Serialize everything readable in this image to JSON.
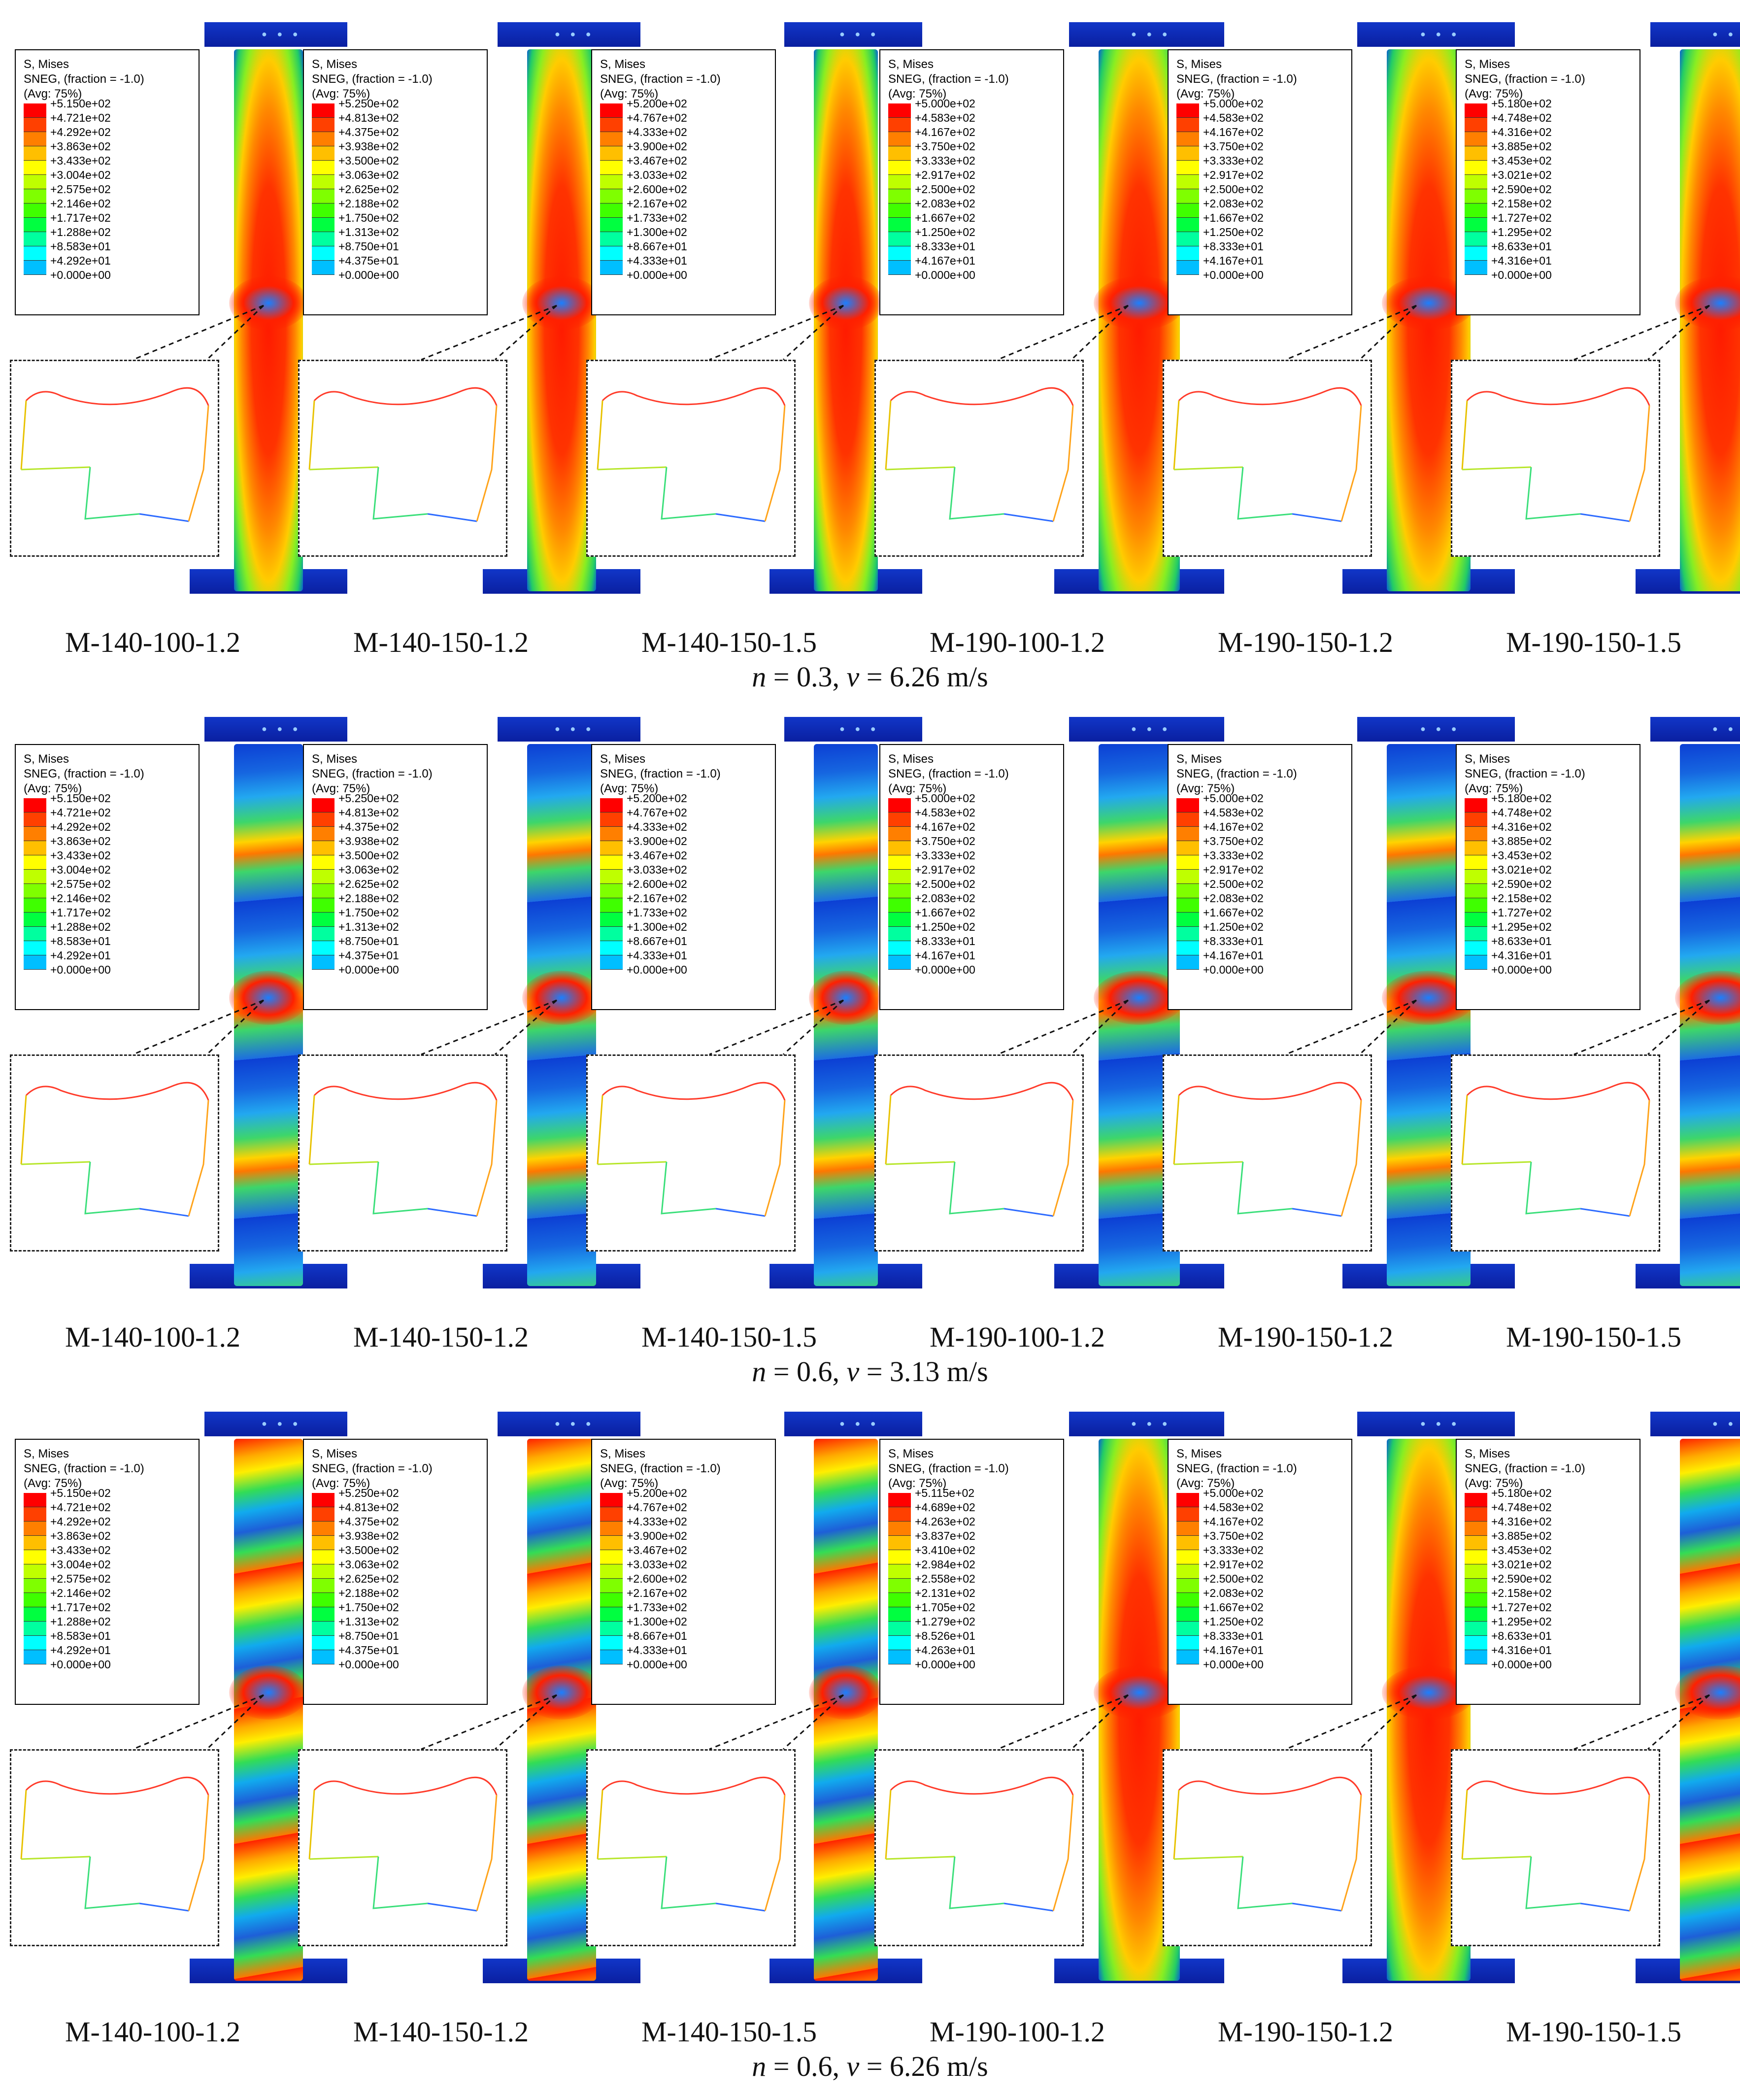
{
  "legend": {
    "title": "S, Mises",
    "line2": "SNEG, (fraction = -1.0)",
    "line3": "(Avg: 75%)",
    "colors": [
      "#ff0000",
      "#ff4000",
      "#ff7f00",
      "#ffbf00",
      "#ffff00",
      "#bfff00",
      "#7fff00",
      "#3fff00",
      "#00ff40",
      "#00ff9f",
      "#00ffff",
      "#00bfff",
      "#007fff",
      "#0000ff"
    ],
    "scales": [
      [
        "+5.150e+02",
        "+4.721e+02",
        "+4.292e+02",
        "+3.863e+02",
        "+3.433e+02",
        "+3.004e+02",
        "+2.575e+02",
        "+2.146e+02",
        "+1.717e+02",
        "+1.288e+02",
        "+8.583e+01",
        "+4.292e+01",
        "+0.000e+00"
      ],
      [
        "+5.250e+02",
        "+4.813e+02",
        "+4.375e+02",
        "+3.938e+02",
        "+3.500e+02",
        "+3.063e+02",
        "+2.625e+02",
        "+2.188e+02",
        "+1.750e+02",
        "+1.313e+02",
        "+8.750e+01",
        "+4.375e+01",
        "+0.000e+00"
      ],
      [
        "+5.200e+02",
        "+4.767e+02",
        "+4.333e+02",
        "+3.900e+02",
        "+3.467e+02",
        "+3.033e+02",
        "+2.600e+02",
        "+2.167e+02",
        "+1.733e+02",
        "+1.300e+02",
        "+8.667e+01",
        "+4.333e+01",
        "+0.000e+00"
      ],
      [
        "+5.000e+02",
        "+4.583e+02",
        "+4.167e+02",
        "+3.750e+02",
        "+3.333e+02",
        "+2.917e+02",
        "+2.500e+02",
        "+2.083e+02",
        "+1.667e+02",
        "+1.250e+02",
        "+8.333e+01",
        "+4.167e+01",
        "+0.000e+00"
      ],
      [
        "+5.000e+02",
        "+4.583e+02",
        "+4.167e+02",
        "+3.750e+02",
        "+3.333e+02",
        "+2.917e+02",
        "+2.500e+02",
        "+2.083e+02",
        "+1.667e+02",
        "+1.250e+02",
        "+8.333e+01",
        "+4.167e+01",
        "+0.000e+00"
      ],
      [
        "+5.180e+02",
        "+4.748e+02",
        "+4.316e+02",
        "+3.885e+02",
        "+3.453e+02",
        "+3.021e+02",
        "+2.590e+02",
        "+2.158e+02",
        "+1.727e+02",
        "+1.295e+02",
        "+8.633e+01",
        "+4.316e+01",
        "+0.000e+00"
      ],
      [
        "+5.115e+02",
        "+4.689e+02",
        "+4.263e+02",
        "+3.837e+02",
        "+3.410e+02",
        "+2.984e+02",
        "+2.558e+02",
        "+2.131e+02",
        "+1.705e+02",
        "+1.279e+02",
        "+8.526e+01",
        "+4.263e+01",
        "+0.000e+00"
      ]
    ]
  },
  "specimens": [
    "M-140-100-1.2",
    "M-140-150-1.2",
    "M-140-150-1.5",
    "M-190-100-1.2",
    "M-190-150-1.2",
    "M-190-150-1.5"
  ],
  "rows": [
    {
      "n_label": "n",
      "n_value": " = 0.3, ",
      "v_label": "v",
      "v_value": " = 6.26 m/s",
      "scale_idx": [
        0,
        1,
        2,
        3,
        4,
        5
      ],
      "stress": [
        "high",
        "high",
        "high",
        "high",
        "high",
        "high"
      ]
    },
    {
      "n_label": "n",
      "n_value": " = 0.6, ",
      "v_label": "v",
      "v_value": " = 3.13 m/s",
      "scale_idx": [
        0,
        1,
        2,
        3,
        4,
        5
      ],
      "stress": [
        "low",
        "low",
        "low",
        "low",
        "low",
        "low"
      ]
    },
    {
      "n_label": "n",
      "n_value": " = 0.6, ",
      "v_label": "v",
      "v_value": " = 6.26 m/s",
      "scale_idx": [
        0,
        1,
        2,
        6,
        4,
        5
      ],
      "stress": [
        "mid",
        "mid",
        "mid",
        "high",
        "high",
        "mid"
      ]
    }
  ]
}
